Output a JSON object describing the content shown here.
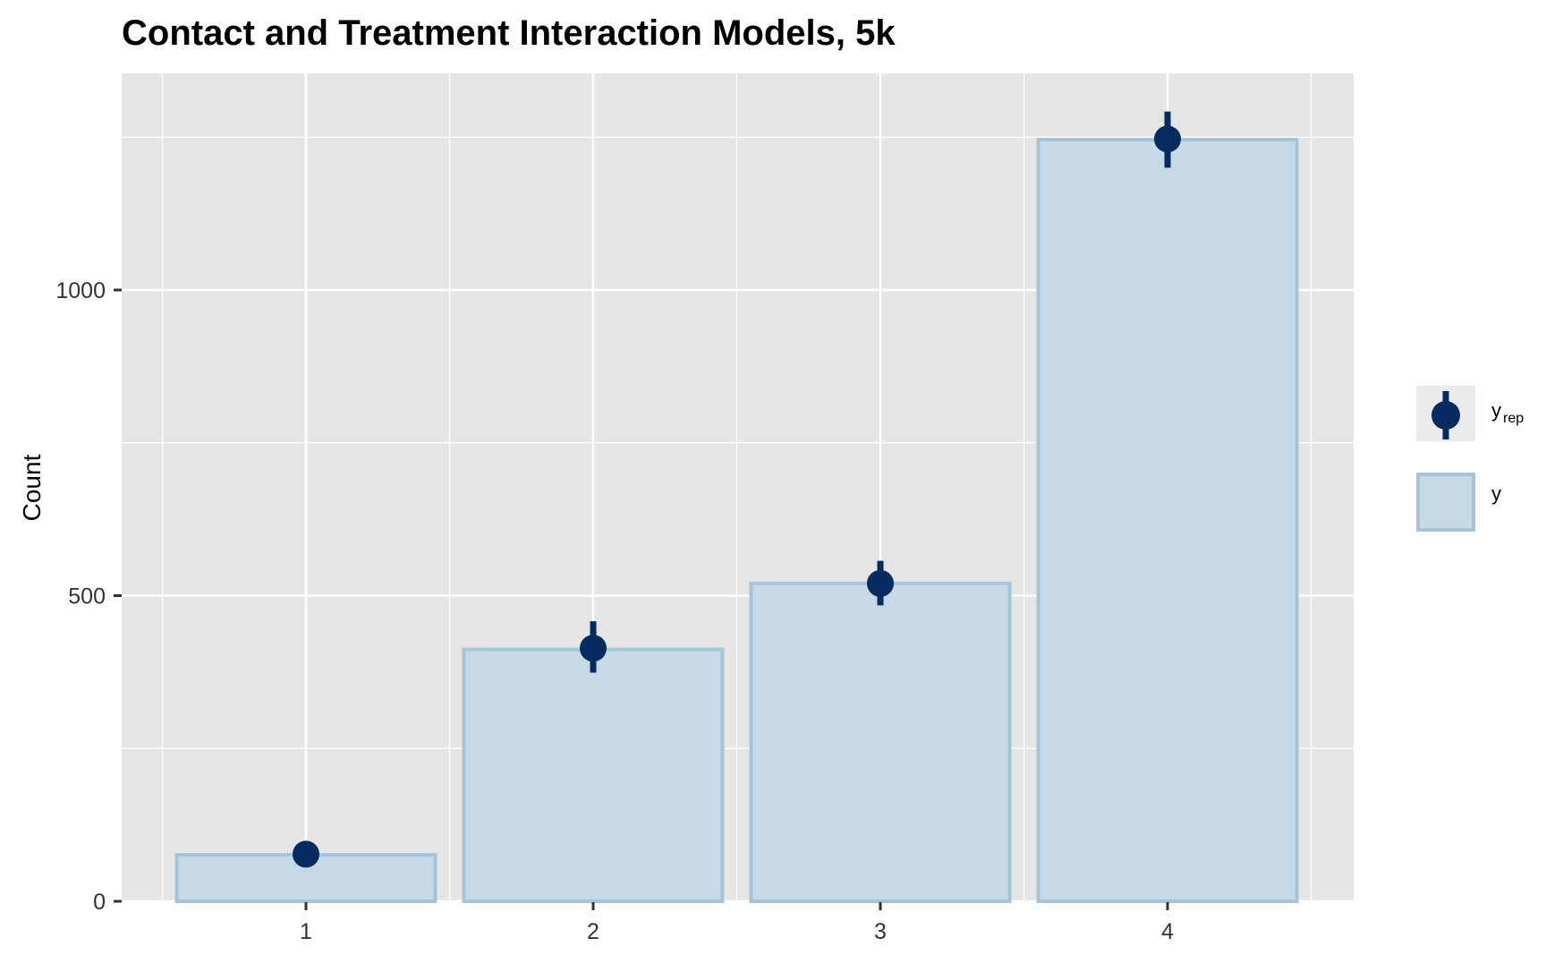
{
  "chart_data": {
    "type": "bar",
    "title": "Contact and Treatment Interaction Models, 5k",
    "xlabel": "",
    "ylabel": "Count",
    "categories": [
      "1",
      "2",
      "3",
      "4"
    ],
    "series": [
      {
        "name": "y",
        "kind": "bar",
        "values": [
          76,
          412,
          520,
          1246
        ]
      },
      {
        "name": "y_rep",
        "kind": "point_interval",
        "values": [
          77,
          414,
          520,
          1247
        ],
        "lower": [
          72,
          374,
          484,
          1200
        ],
        "upper": [
          82,
          458,
          557,
          1292
        ]
      }
    ],
    "ylim": [
      0,
      1300
    ],
    "yticks": [
      0,
      500,
      1000
    ],
    "grid": true,
    "legend": {
      "placement": "right",
      "entries": [
        {
          "base": "y",
          "subscript": "rep",
          "symbol": "point-interval"
        },
        {
          "base": "y",
          "subscript": "",
          "symbol": "bar"
        }
      ]
    },
    "colors": {
      "panel_bg": "#e5e5e5",
      "grid": "#ffffff",
      "bar_fill": "#c6d9e7",
      "bar_stroke": "#a7c3d8",
      "point": "#062b5f"
    }
  }
}
